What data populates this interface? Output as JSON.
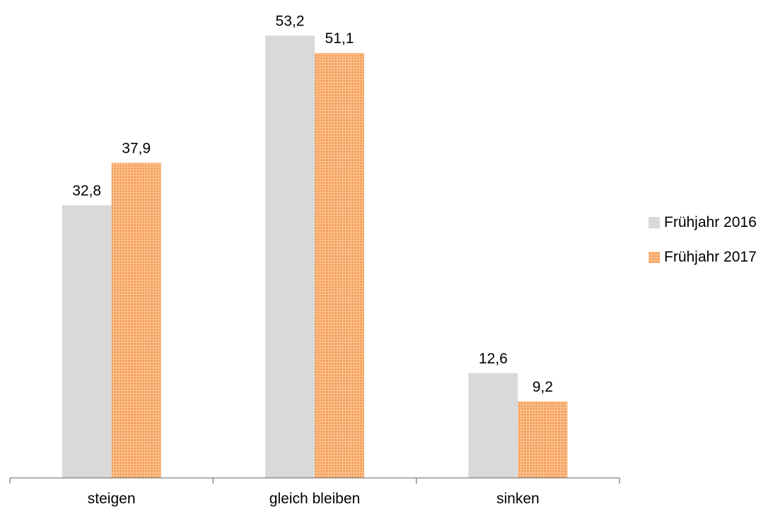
{
  "chart_data": {
    "type": "bar",
    "categories": [
      "steigen",
      "gleich bleiben",
      "sinken"
    ],
    "series": [
      {
        "name": "Frühjahr 2016",
        "values": [
          32.8,
          53.2,
          12.6
        ],
        "labels": [
          "32,8",
          "53,2",
          "12,6"
        ],
        "color": "#d9d9d9"
      },
      {
        "name": "Frühjahr 2017",
        "values": [
          37.9,
          51.1,
          9.2
        ],
        "labels": [
          "37,9",
          "51,1",
          "9,2"
        ],
        "color": "#f79646"
      }
    ],
    "ylim": [
      0,
      55
    ],
    "grid": false,
    "legend_position": "right"
  }
}
